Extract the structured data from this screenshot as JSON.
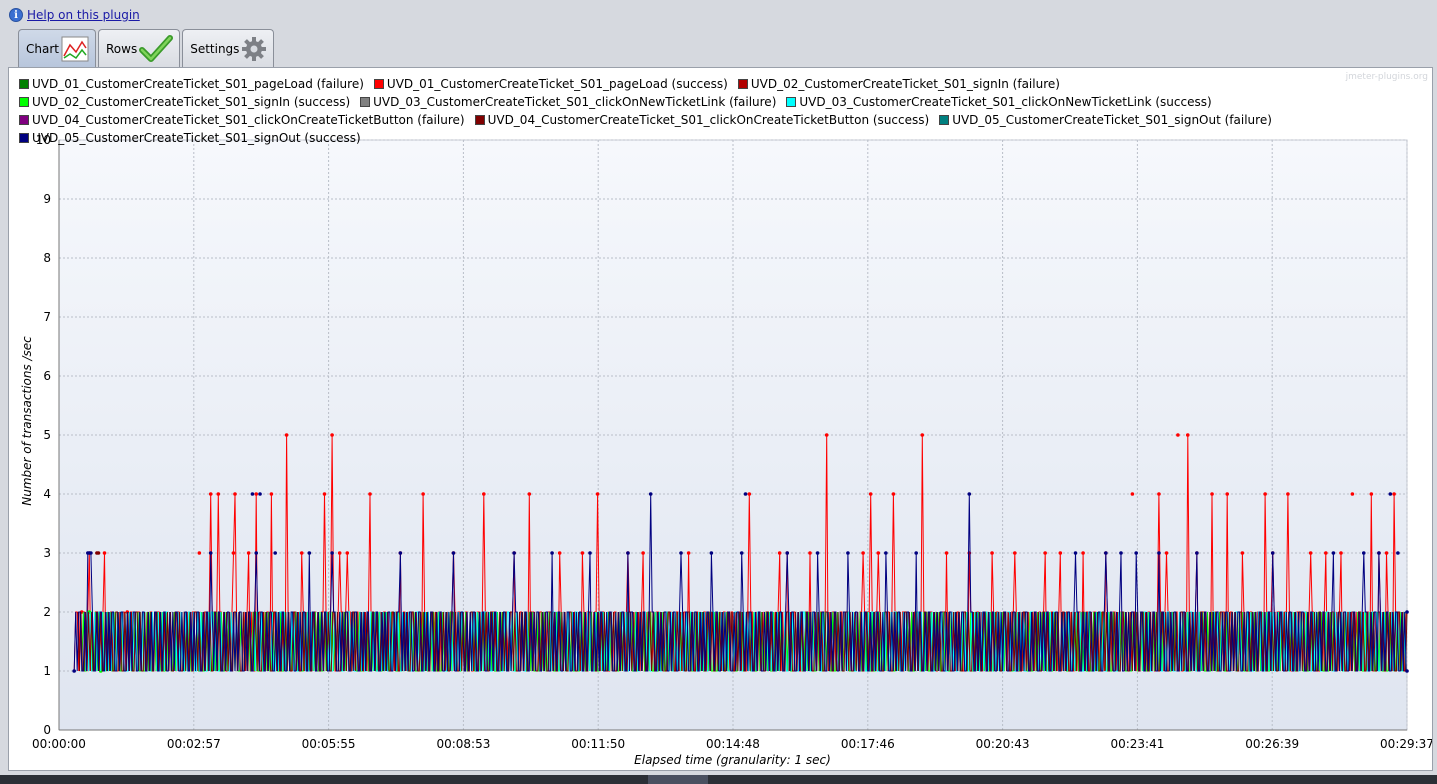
{
  "help": {
    "label": "Help on this plugin",
    "icon": "info-icon"
  },
  "tabs": [
    {
      "label": "Chart",
      "icon": "chart-icon",
      "active": true
    },
    {
      "label": "Rows",
      "icon": "checkmark-icon",
      "active": false
    },
    {
      "label": "Settings",
      "icon": "gear-icon",
      "active": false
    }
  ],
  "watermark": "jmeter-plugins.org",
  "chart_data": {
    "type": "line",
    "title": "",
    "xlabel": "Elapsed time (granularity: 1 sec)",
    "ylabel": "Number of transactions /sec",
    "ylim": [
      0,
      10
    ],
    "yticks": [
      "0",
      "1",
      "2",
      "3",
      "4",
      "5",
      "6",
      "7",
      "8",
      "9",
      "10"
    ],
    "xlim_seconds": [
      0,
      1777
    ],
    "xticks": [
      "00:00:00",
      "00:02:57",
      "00:05:55",
      "00:08:53",
      "00:11:50",
      "00:14:48",
      "00:17:46",
      "00:20:43",
      "00:23:41",
      "00:26:39",
      "00:29:37"
    ],
    "grid": true,
    "legend_position": "top",
    "series": [
      {
        "name": "UVD_01_CustomerCreateTicket_S01_pageLoad (failure)",
        "color": "#008000"
      },
      {
        "name": "UVD_01_CustomerCreateTicket_S01_pageLoad (success)",
        "color": "#ff0000",
        "base_pattern": [
          1,
          2,
          2,
          1,
          2,
          1,
          2,
          2,
          1,
          2,
          1,
          1,
          2,
          1,
          2,
          2,
          1,
          2
        ],
        "x_start": 20,
        "peaks": [
          [
            30,
            2
          ],
          [
            40,
            3
          ],
          [
            60,
            3
          ],
          [
            90,
            2
          ],
          [
            185,
            3
          ],
          [
            200,
            4
          ],
          [
            210,
            4
          ],
          [
            230,
            3
          ],
          [
            232,
            4
          ],
          [
            250,
            3
          ],
          [
            260,
            4
          ],
          [
            280,
            4
          ],
          [
            300,
            5
          ],
          [
            320,
            3
          ],
          [
            350,
            4
          ],
          [
            360,
            5
          ],
          [
            370,
            3
          ],
          [
            380,
            3
          ],
          [
            410,
            4
          ],
          [
            450,
            3
          ],
          [
            480,
            4
          ],
          [
            520,
            3
          ],
          [
            560,
            4
          ],
          [
            600,
            3
          ],
          [
            620,
            4
          ],
          [
            660,
            3
          ],
          [
            690,
            3
          ],
          [
            710,
            4
          ],
          [
            750,
            3
          ],
          [
            770,
            3
          ],
          [
            830,
            3
          ],
          [
            910,
            4
          ],
          [
            950,
            3
          ],
          [
            960,
            3
          ],
          [
            990,
            3
          ],
          [
            1012,
            5
          ],
          [
            1060,
            3
          ],
          [
            1070,
            4
          ],
          [
            1080,
            3
          ],
          [
            1100,
            4
          ],
          [
            1138,
            5
          ],
          [
            1170,
            3
          ],
          [
            1200,
            3
          ],
          [
            1230,
            3
          ],
          [
            1260,
            3
          ],
          [
            1300,
            3
          ],
          [
            1320,
            3
          ],
          [
            1350,
            3
          ],
          [
            1380,
            3
          ],
          [
            1415,
            4
          ],
          [
            1450,
            4
          ],
          [
            1460,
            3
          ],
          [
            1475,
            5
          ],
          [
            1488,
            5
          ],
          [
            1500,
            3
          ],
          [
            1520,
            4
          ],
          [
            1540,
            4
          ],
          [
            1560,
            3
          ],
          [
            1590,
            4
          ],
          [
            1600,
            3
          ],
          [
            1620,
            4
          ],
          [
            1650,
            3
          ],
          [
            1670,
            3
          ],
          [
            1690,
            3
          ],
          [
            1705,
            4
          ],
          [
            1730,
            4
          ],
          [
            1740,
            3
          ],
          [
            1750,
            3
          ],
          [
            1760,
            4
          ]
        ]
      },
      {
        "name": "UVD_02_CustomerCreateTicket_S01_signIn (failure)",
        "color": "#b00000"
      },
      {
        "name": "UVD_02_CustomerCreateTicket_S01_signIn (success)",
        "color": "#00ff00",
        "base_pattern": [
          1,
          2,
          1,
          1,
          2,
          1,
          2,
          1,
          1,
          2,
          1,
          2,
          1
        ],
        "x_start": 30,
        "peaks": [
          [
            40,
            2
          ],
          [
            55,
            1
          ]
        ]
      },
      {
        "name": "UVD_03_CustomerCreateTicket_S01_clickOnNewTicketLink (failure)",
        "color": "#808080"
      },
      {
        "name": "UVD_03_CustomerCreateTicket_S01_clickOnNewTicketLink (success)",
        "color": "#00ffff",
        "base_pattern": [
          1,
          2,
          1,
          2,
          1,
          1,
          2,
          1,
          2,
          2,
          1,
          2,
          1,
          1,
          2
        ],
        "x_start": 35,
        "peaks": []
      },
      {
        "name": "UVD_04_CustomerCreateTicket_S01_clickOnCreateTicketButton (failure)",
        "color": "#800080"
      },
      {
        "name": "UVD_04_CustomerCreateTicket_S01_clickOnCreateTicketButton (success)",
        "color": "#800000",
        "base_pattern": [
          2,
          1,
          2,
          1,
          1,
          2,
          1,
          2,
          1,
          2,
          1,
          1,
          2
        ],
        "x_start": 25,
        "peaks": [
          [
            50,
            3
          ],
          [
            52,
            3
          ]
        ]
      },
      {
        "name": "UVD_05_CustomerCreateTicket_S01_signOut (failure)",
        "color": "#008080"
      },
      {
        "name": "UVD_05_CustomerCreateTicket_S01_signOut (success)",
        "color": "#000080",
        "base_pattern": [
          1,
          2,
          1,
          2,
          2,
          1,
          1,
          2,
          1,
          2,
          1,
          2,
          2,
          1
        ],
        "x_start": 20,
        "peaks": [
          [
            38,
            3
          ],
          [
            40,
            3
          ],
          [
            42,
            3
          ],
          [
            200,
            3
          ],
          [
            255,
            4
          ],
          [
            260,
            3
          ],
          [
            265,
            4
          ],
          [
            285,
            3
          ],
          [
            330,
            3
          ],
          [
            360,
            3
          ],
          [
            450,
            3
          ],
          [
            520,
            3
          ],
          [
            600,
            3
          ],
          [
            650,
            3
          ],
          [
            700,
            3
          ],
          [
            750,
            3
          ],
          [
            780,
            4
          ],
          [
            820,
            3
          ],
          [
            860,
            3
          ],
          [
            900,
            3
          ],
          [
            905,
            4
          ],
          [
            960,
            3
          ],
          [
            1000,
            3
          ],
          [
            1040,
            3
          ],
          [
            1090,
            3
          ],
          [
            1130,
            3
          ],
          [
            1200,
            4
          ],
          [
            1340,
            3
          ],
          [
            1380,
            3
          ],
          [
            1400,
            3
          ],
          [
            1420,
            3
          ],
          [
            1450,
            3
          ],
          [
            1500,
            3
          ],
          [
            1600,
            3
          ],
          [
            1680,
            3
          ],
          [
            1720,
            3
          ],
          [
            1740,
            3
          ],
          [
            1755,
            4
          ],
          [
            1765,
            3
          ]
        ]
      }
    ]
  }
}
